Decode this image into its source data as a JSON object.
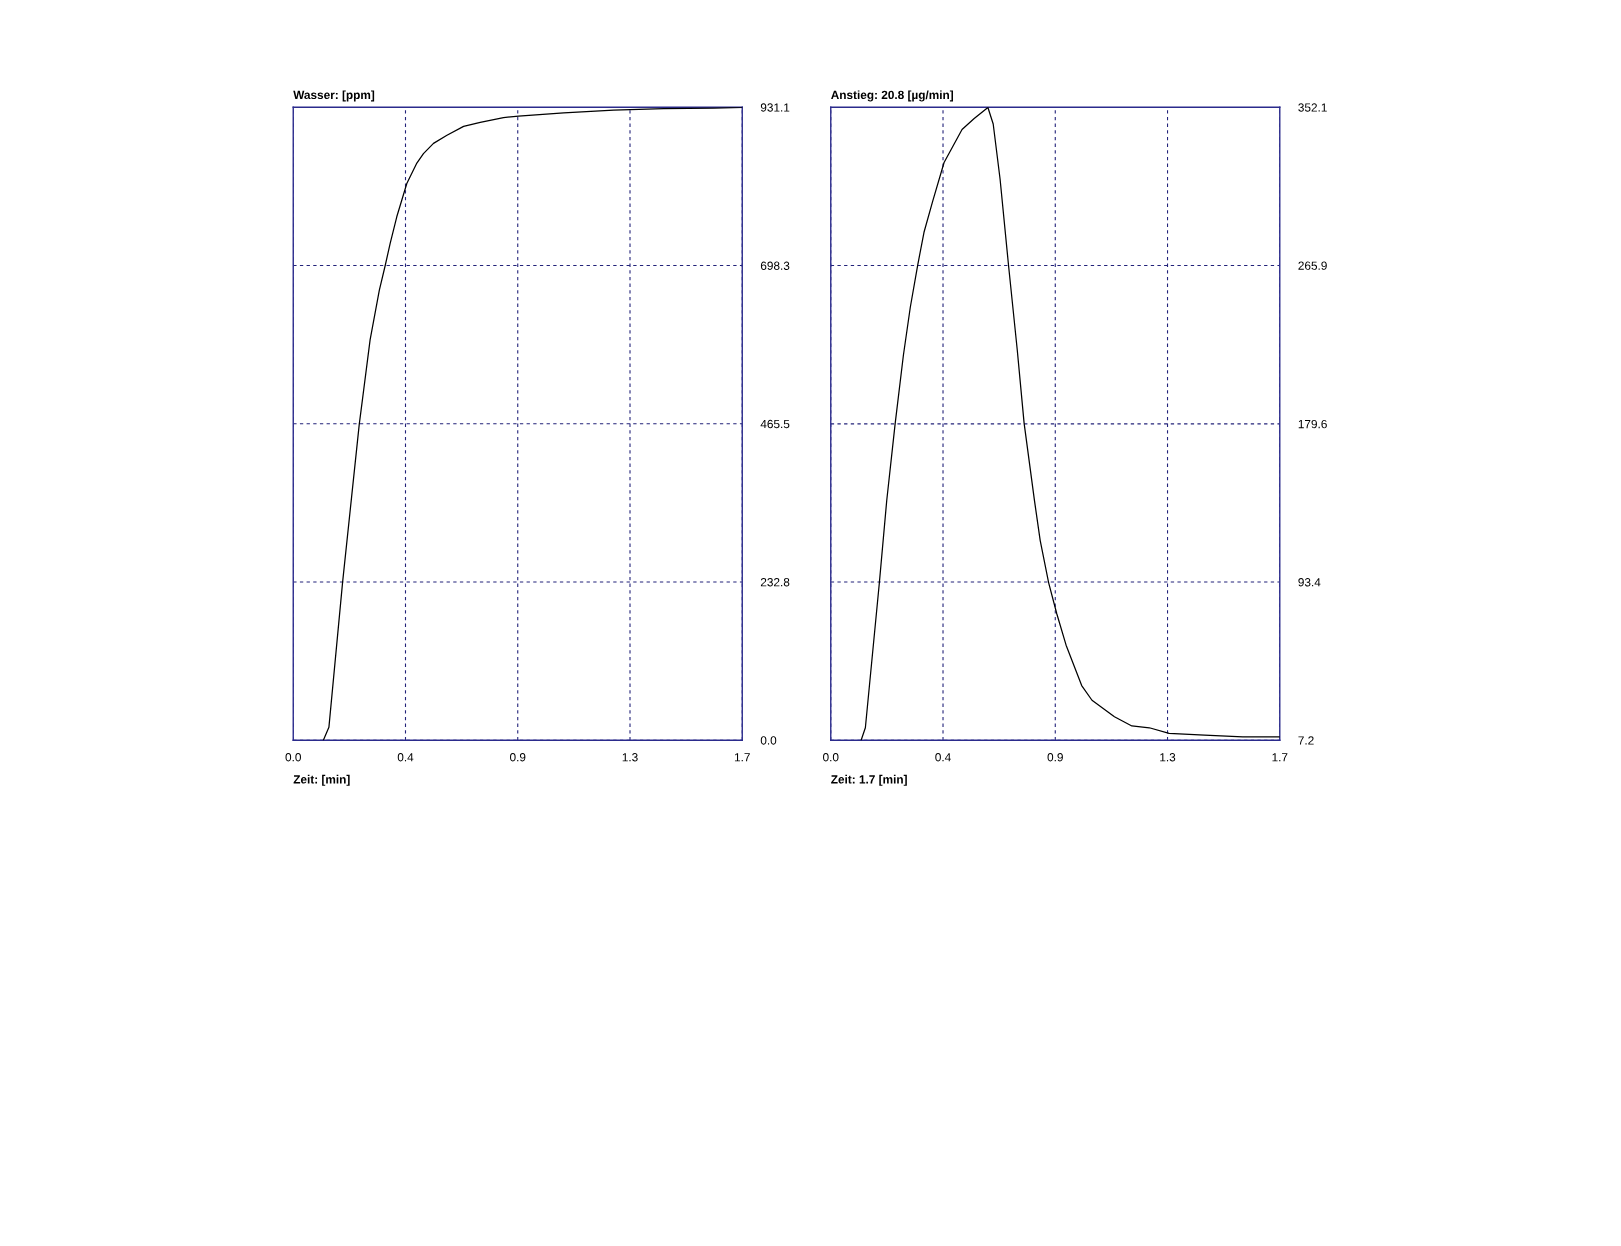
{
  "chart_data": [
    {
      "type": "line",
      "title": "Wasser: [ppm]",
      "xlabel": "Zeit: [min]",
      "x": [
        0.114,
        0.135,
        0.187,
        0.221,
        0.25,
        0.262,
        0.291,
        0.326,
        0.348,
        0.367,
        0.392,
        0.43,
        0.468,
        0.493,
        0.531,
        0.582,
        0.645,
        0.708,
        0.796,
        0.853,
        1.024,
        1.213,
        1.403,
        1.592,
        1.7
      ],
      "series": [
        {
          "color": "#000000",
          "values": [
            0,
            19,
            233,
            358,
            465,
            501,
            589,
            662,
            698,
            731,
            770,
            819,
            849,
            863,
            878,
            890,
            903,
            909,
            916,
            918,
            923,
            927,
            929,
            930,
            931
          ]
        }
      ],
      "xlim": [
        0,
        1.7
      ],
      "xticks": [
        {
          "value": 0,
          "label": "0.0"
        },
        {
          "value": 0.425,
          "label": "0.4"
        },
        {
          "value": 0.85,
          "label": "0.9"
        },
        {
          "value": 1.275,
          "label": "1.3"
        },
        {
          "value": 1.7,
          "label": "1.7"
        }
      ],
      "ylim": [
        0,
        931.1
      ],
      "yticks": [
        {
          "value": 0,
          "label": "0.0"
        },
        232.8,
        465.5,
        698.3,
        931.1
      ],
      "grid": true
    },
    {
      "type": "line",
      "title": "Anstieg: 20.8 [µg/min]",
      "xlabel": "Zeit: 1.7 [min]",
      "x": [
        0.115,
        0.131,
        0.184,
        0.212,
        0.244,
        0.275,
        0.301,
        0.329,
        0.353,
        0.386,
        0.429,
        0.497,
        0.543,
        0.595,
        0.615,
        0.641,
        0.673,
        0.706,
        0.732,
        0.771,
        0.793,
        0.825,
        0.856,
        0.891,
        0.95,
        0.989,
        1.074,
        1.14,
        1.206,
        1.281,
        1.415,
        1.56,
        1.7
      ],
      "series": [
        {
          "color": "#000000",
          "values": [
            7.2,
            14,
            93,
            138,
            180,
            217,
            243,
            266,
            284,
            301,
            322,
            340,
            346,
            352,
            343,
            313,
            266,
            220,
            180,
            138,
            116,
            93,
            76,
            59,
            37,
            29,
            20,
            15,
            14,
            11,
            10,
            9,
            9
          ]
        }
      ],
      "xlim": [
        0,
        1.7
      ],
      "xticks": [
        {
          "value": 0,
          "label": "0.0"
        },
        {
          "value": 0.425,
          "label": "0.4"
        },
        {
          "value": 0.85,
          "label": "0.9"
        },
        {
          "value": 1.275,
          "label": "1.3"
        },
        {
          "value": 1.7,
          "label": "1.7"
        }
      ],
      "ylim": [
        7.2,
        352.1
      ],
      "yticks": [
        7.2,
        93.4,
        179.6,
        265.9,
        352.1
      ],
      "grid": true
    }
  ]
}
